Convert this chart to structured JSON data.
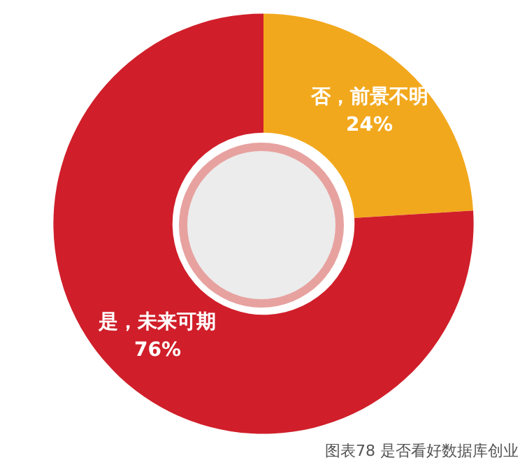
{
  "chart_data": {
    "type": "donut",
    "categories": [
      "否，前景不明",
      "是，未来可期"
    ],
    "values": [
      24,
      76
    ],
    "colors": [
      "#f2a81d",
      "#d01f2a"
    ],
    "value_labels": [
      "24%",
      "76%"
    ],
    "annotations": [
      "图表78 是否看好数据库创业"
    ],
    "legend": false
  }
}
